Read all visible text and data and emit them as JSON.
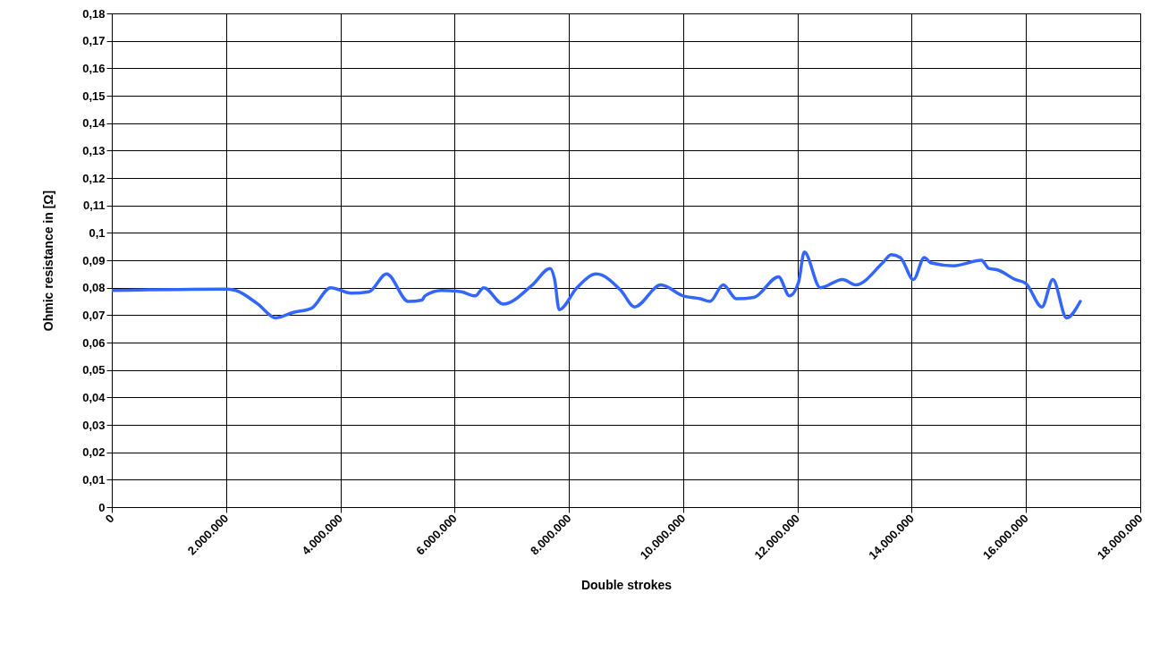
{
  "chart_data": {
    "type": "line",
    "xlabel": "Double strokes",
    "ylabel": "Ohmic resistance in [Ω]",
    "x": [
      0,
      2000000,
      2170000,
      2560000,
      2870000,
      3180000,
      3490000,
      3830000,
      4190000,
      4500000,
      4810000,
      5190000,
      5430000,
      5480000,
      5770000,
      6120000,
      6360000,
      6510000,
      6850000,
      7360000,
      7670000,
      7750000,
      7830000,
      8140000,
      8480000,
      8910000,
      9150000,
      9610000,
      10000000,
      10300000,
      10470000,
      10700000,
      10930000,
      11240000,
      11670000,
      11860000,
      12020000,
      12120000,
      12400000,
      12790000,
      13020000,
      13490000,
      13640000,
      13800000,
      14030000,
      14220000,
      14340000,
      14730000,
      15220000,
      15350000,
      15500000,
      15810000,
      16000000,
      16280000,
      16470000,
      16710000,
      16950000
    ],
    "series": [
      {
        "color": "#3366ff",
        "values": [
          0.079,
          0.0795,
          0.079,
          0.074,
          0.069,
          0.071,
          0.0724,
          0.08,
          0.078,
          0.0785,
          0.085,
          0.075,
          0.0755,
          0.077,
          0.079,
          0.0785,
          0.077,
          0.08,
          0.074,
          0.081,
          0.087,
          0.083,
          0.072,
          0.08,
          0.085,
          0.079,
          0.073,
          0.081,
          0.077,
          0.076,
          0.075,
          0.081,
          0.076,
          0.0765,
          0.084,
          0.077,
          0.082,
          0.093,
          0.08,
          0.083,
          0.081,
          0.089,
          0.092,
          0.091,
          0.083,
          0.091,
          0.089,
          0.088,
          0.09,
          0.087,
          0.0865,
          0.083,
          0.0815,
          0.073,
          0.083,
          0.069,
          0.075
        ]
      }
    ],
    "xlim": [
      0,
      18000000
    ],
    "xticks": [
      0,
      {
        "value": 2000000,
        "label": "2.000.000"
      },
      {
        "value": 4000000,
        "label": "4.000.000"
      },
      {
        "value": 6000000,
        "label": "6.000.000"
      },
      {
        "value": 8000000,
        "label": "8.000.000"
      },
      {
        "value": 10000000,
        "label": "10.000.000"
      },
      {
        "value": 12000000,
        "label": "12.000.000"
      },
      {
        "value": 14000000,
        "label": "14.000.000"
      },
      {
        "value": 16000000,
        "label": "16.000.000"
      },
      {
        "value": 18000000,
        "label": "18.000.000"
      }
    ],
    "ylim": [
      0,
      0.18
    ],
    "yticks": [
      0,
      {
        "value": 0.01,
        "label": "0,01"
      },
      {
        "value": 0.02,
        "label": "0,02"
      },
      {
        "value": 0.03,
        "label": "0,03"
      },
      {
        "value": 0.04,
        "label": "0,04"
      },
      {
        "value": 0.05,
        "label": "0,05"
      },
      {
        "value": 0.06,
        "label": "0,06"
      },
      {
        "value": 0.07,
        "label": "0,07"
      },
      {
        "value": 0.08,
        "label": "0,08"
      },
      {
        "value": 0.09,
        "label": "0,09"
      },
      {
        "value": 0.1,
        "label": "0,1"
      },
      {
        "value": 0.11,
        "label": "0,11"
      },
      {
        "value": 0.12,
        "label": "0,12"
      },
      {
        "value": 0.13,
        "label": "0,13"
      },
      {
        "value": 0.14,
        "label": "0,14"
      },
      {
        "value": 0.15,
        "label": "0,15"
      },
      {
        "value": 0.16,
        "label": "0,16"
      },
      {
        "value": 0.17,
        "label": "0,17"
      },
      {
        "value": 0.18,
        "label": "0,18"
      }
    ],
    "grid": true,
    "line_style": "solid"
  }
}
